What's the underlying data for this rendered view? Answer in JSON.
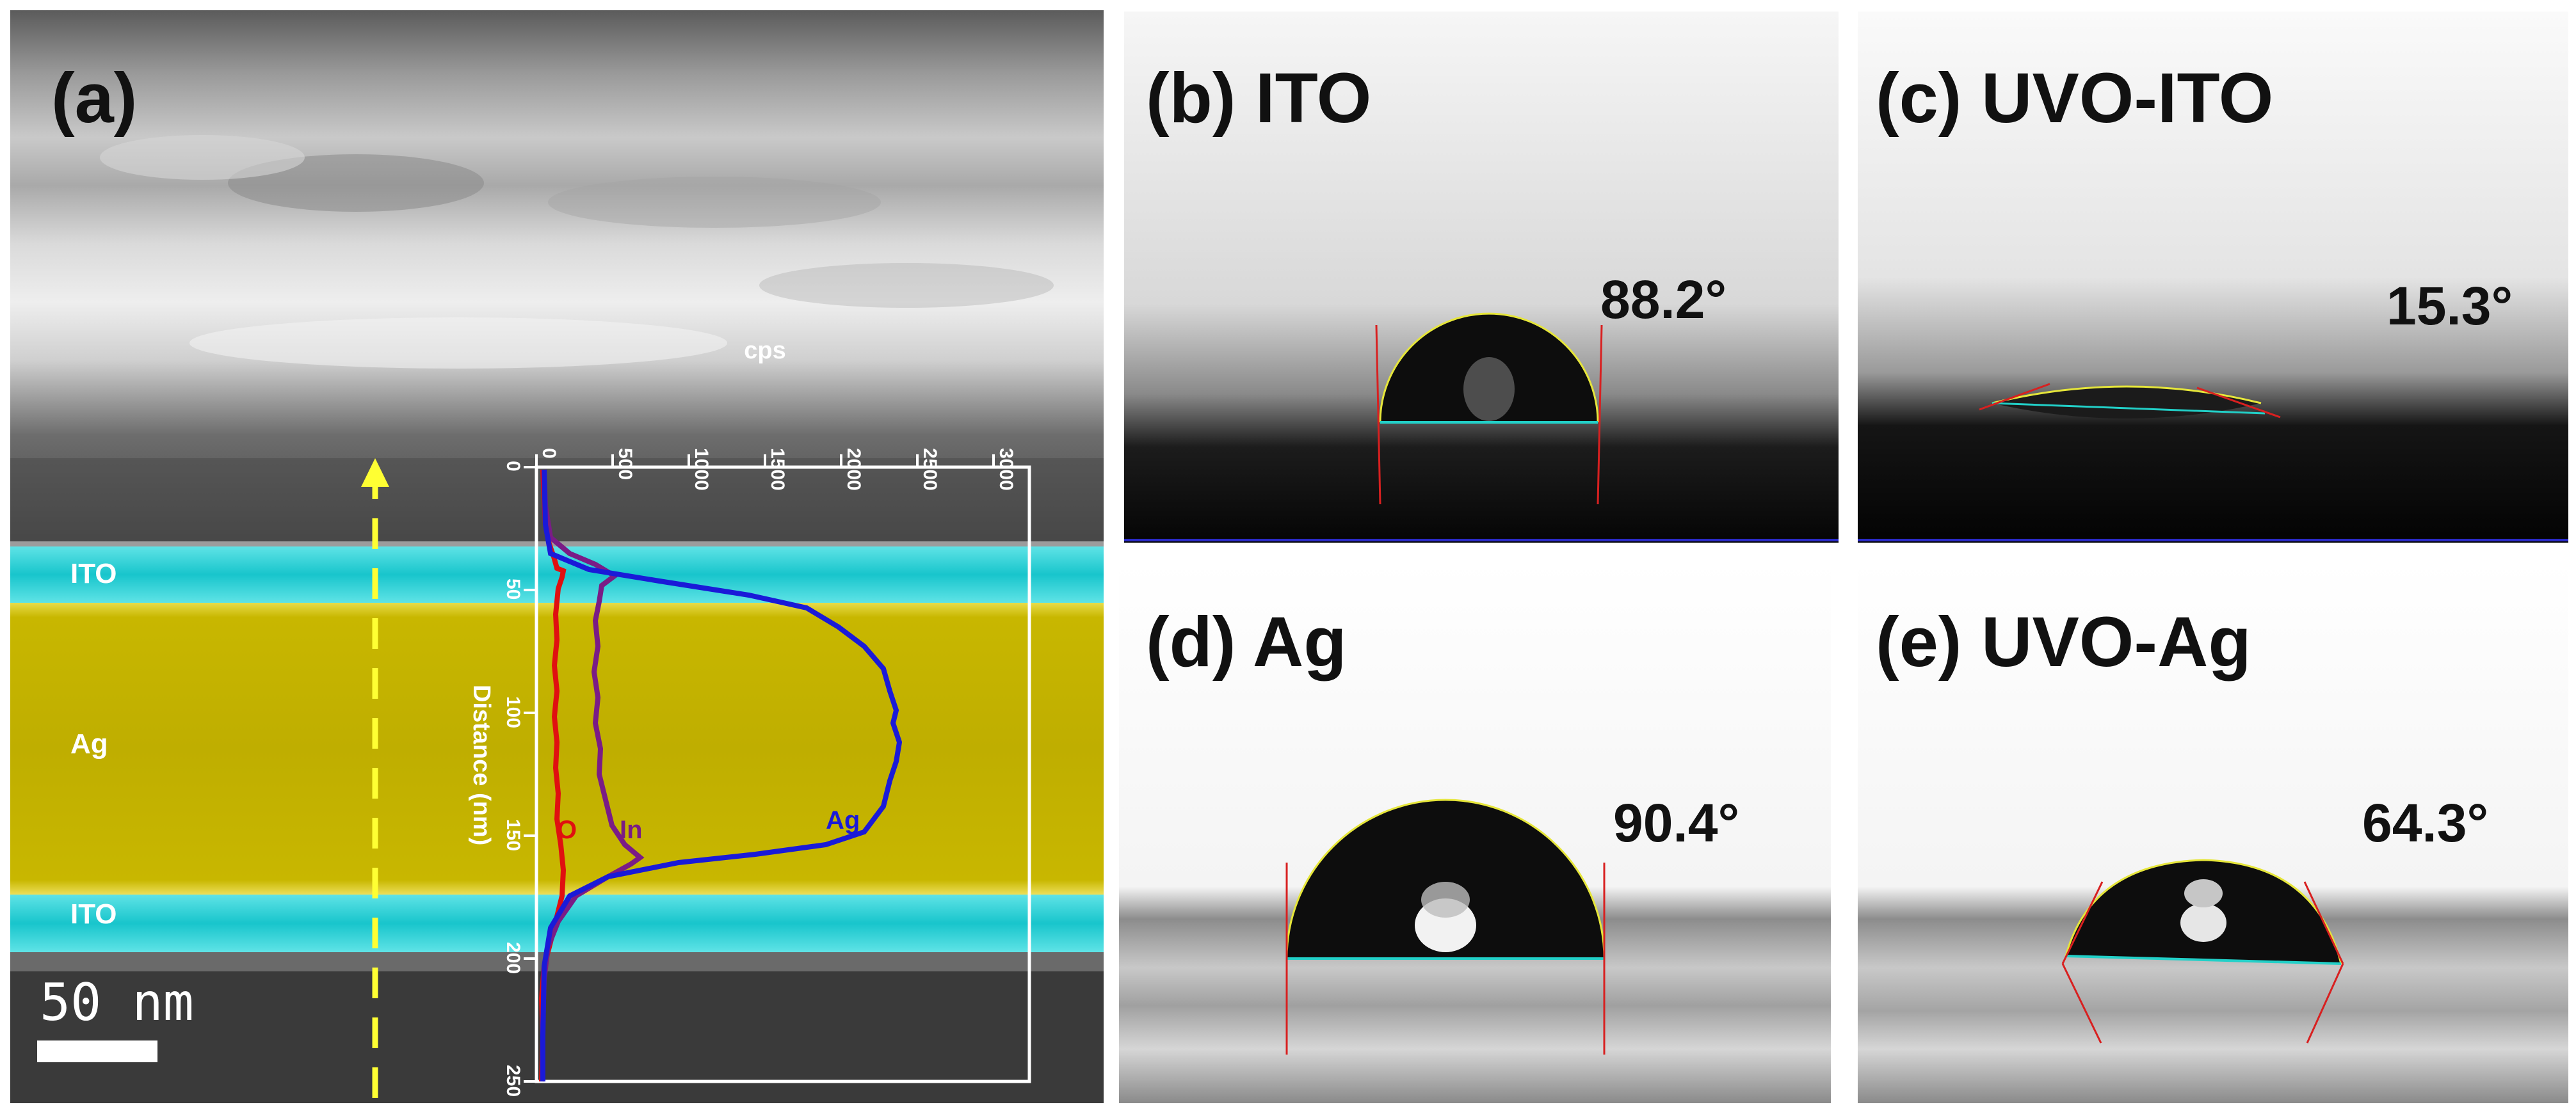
{
  "panels": {
    "a": {
      "label": "(a)",
      "layers": {
        "top": "ITO",
        "middle": "Ag",
        "bottom": "ITO"
      },
      "scalebar": "50 nm",
      "profile": {
        "x_axis_label": "cps",
        "x_ticks": [
          "0",
          "500",
          "1000",
          "1500",
          "2000",
          "2500",
          "3000"
        ],
        "y_axis_label": "Distance (nm)",
        "y_ticks": [
          "0",
          "50",
          "100",
          "150",
          "200",
          "250"
        ],
        "series_labels": {
          "o": "O",
          "in": "In",
          "ag": "Ag"
        }
      }
    },
    "b": {
      "label": "(b) ITO",
      "angle": "88.2°"
    },
    "c": {
      "label": "(c) UVO-ITO",
      "angle": "15.3°"
    },
    "d": {
      "label": "(d) Ag",
      "angle": "90.4°"
    },
    "e": {
      "label": "(e) UVO-Ag",
      "angle": "64.3°"
    }
  },
  "colors": {
    "ito": "#1fd0d6",
    "ag": "#d7c400",
    "o": "#e01010",
    "in": "#7a1c86",
    "ag_line": "#1a1ad8"
  }
}
